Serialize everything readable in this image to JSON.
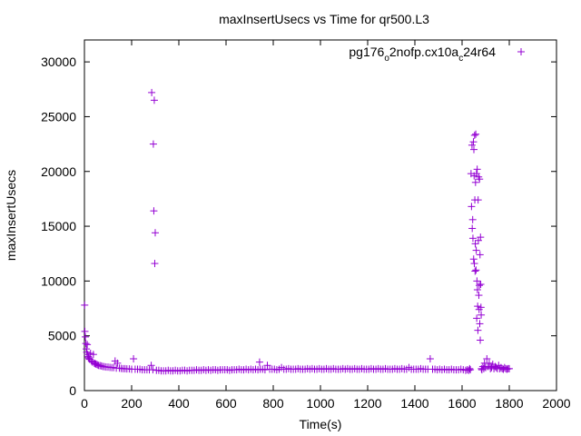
{
  "chart_data": {
    "type": "scatter",
    "title": "maxInsertUsecs vs Time for qr500.L3",
    "xlabel": "Time(s)",
    "ylabel": "maxInsertUsecs",
    "xlim": [
      0,
      2000
    ],
    "ylim": [
      0,
      32000
    ],
    "x_ticks": [
      0,
      200,
      400,
      600,
      800,
      1000,
      1200,
      1400,
      1600,
      1800,
      2000
    ],
    "y_ticks": [
      0,
      5000,
      10000,
      15000,
      20000,
      25000,
      30000
    ],
    "x_tick_labels": [
      "0",
      "200",
      "400",
      "600",
      "800",
      "1000",
      "1200",
      "1400",
      "1600",
      "1800",
      "2000"
    ],
    "y_tick_labels": [
      "0",
      "5000",
      "10000",
      "15000",
      "20000",
      "25000",
      "30000"
    ],
    "grid": false,
    "legend_position": "top-right",
    "marker": "plus",
    "colors": {
      "series": "#9400d3",
      "axes": "#000000"
    },
    "series": [
      {
        "name": "pg176_o2nofp.cx10a_c24r64",
        "legend_parts": {
          "a": "pg176",
          "b": "o",
          "c": "2nofp.cx10a",
          "d": "c",
          "e": "24r64"
        },
        "points": [
          [
            1,
            7800
          ],
          [
            2,
            5400
          ],
          [
            4,
            4900
          ],
          [
            6,
            4300
          ],
          [
            8,
            3800
          ],
          [
            10,
            3500
          ],
          [
            12,
            4200
          ],
          [
            14,
            3300
          ],
          [
            16,
            3100
          ],
          [
            18,
            3000
          ],
          [
            20,
            2900
          ],
          [
            23,
            2850
          ],
          [
            26,
            3400
          ],
          [
            30,
            2700
          ],
          [
            34,
            2600
          ],
          [
            38,
            3300
          ],
          [
            42,
            2500
          ],
          [
            46,
            2450
          ],
          [
            50,
            2400
          ],
          [
            55,
            2350
          ],
          [
            60,
            2300
          ],
          [
            66,
            2280
          ],
          [
            72,
            2250
          ],
          [
            78,
            2200
          ],
          [
            85,
            2180
          ],
          [
            92,
            2150
          ],
          [
            100,
            2150
          ],
          [
            108,
            2120
          ],
          [
            116,
            2100
          ],
          [
            124,
            2100
          ],
          [
            130,
            2700
          ],
          [
            135,
            2050
          ],
          [
            140,
            2500
          ],
          [
            148,
            2050
          ],
          [
            156,
            2020
          ],
          [
            164,
            2000
          ],
          [
            172,
            2000
          ],
          [
            180,
            1980
          ],
          [
            190,
            1980
          ],
          [
            200,
            1950
          ],
          [
            208,
            2900
          ],
          [
            215,
            1950
          ],
          [
            225,
            1950
          ],
          [
            235,
            1950
          ],
          [
            245,
            1900
          ],
          [
            255,
            1900
          ],
          [
            265,
            1900
          ],
          [
            275,
            1900
          ],
          [
            283,
            2300
          ],
          [
            285,
            27200
          ],
          [
            290,
            1900
          ],
          [
            292,
            22500
          ],
          [
            294,
            16400
          ],
          [
            296,
            26500
          ],
          [
            298,
            11600
          ],
          [
            300,
            14400
          ],
          [
            305,
            1850
          ],
          [
            315,
            1850
          ],
          [
            325,
            1800
          ],
          [
            335,
            1800
          ],
          [
            345,
            1800
          ],
          [
            355,
            1850
          ],
          [
            365,
            1800
          ],
          [
            375,
            1800
          ],
          [
            385,
            1850
          ],
          [
            395,
            1800
          ],
          [
            405,
            1800
          ],
          [
            415,
            1850
          ],
          [
            425,
            1850
          ],
          [
            435,
            1800
          ],
          [
            445,
            1850
          ],
          [
            455,
            1850
          ],
          [
            465,
            1850
          ],
          [
            475,
            1900
          ],
          [
            485,
            1850
          ],
          [
            495,
            1850
          ],
          [
            505,
            1900
          ],
          [
            515,
            1850
          ],
          [
            525,
            1900
          ],
          [
            535,
            1850
          ],
          [
            545,
            1900
          ],
          [
            555,
            1900
          ],
          [
            565,
            1850
          ],
          [
            575,
            1900
          ],
          [
            585,
            1900
          ],
          [
            595,
            1900
          ],
          [
            605,
            1900
          ],
          [
            615,
            1850
          ],
          [
            625,
            1900
          ],
          [
            635,
            1900
          ],
          [
            645,
            1900
          ],
          [
            655,
            1950
          ],
          [
            665,
            1900
          ],
          [
            675,
            1900
          ],
          [
            685,
            1950
          ],
          [
            695,
            1900
          ],
          [
            705,
            1950
          ],
          [
            715,
            1900
          ],
          [
            725,
            1950
          ],
          [
            735,
            1900
          ],
          [
            742,
            2600
          ],
          [
            745,
            1950
          ],
          [
            755,
            1950
          ],
          [
            765,
            1900
          ],
          [
            775,
            2300
          ],
          [
            785,
            1950
          ],
          [
            795,
            1950
          ],
          [
            805,
            1950
          ],
          [
            815,
            1900
          ],
          [
            825,
            1950
          ],
          [
            835,
            2100
          ],
          [
            845,
            1950
          ],
          [
            855,
            1950
          ],
          [
            865,
            2000
          ],
          [
            875,
            1950
          ],
          [
            885,
            1950
          ],
          [
            895,
            1950
          ],
          [
            905,
            2000
          ],
          [
            915,
            1950
          ],
          [
            925,
            1950
          ],
          [
            935,
            1950
          ],
          [
            945,
            2000
          ],
          [
            955,
            1950
          ],
          [
            965,
            2000
          ],
          [
            975,
            1950
          ],
          [
            985,
            1950
          ],
          [
            995,
            2000
          ],
          [
            1005,
            1950
          ],
          [
            1015,
            1950
          ],
          [
            1025,
            2000
          ],
          [
            1035,
            1950
          ],
          [
            1045,
            1950
          ],
          [
            1055,
            2000
          ],
          [
            1065,
            1950
          ],
          [
            1075,
            1950
          ],
          [
            1085,
            1950
          ],
          [
            1095,
            2000
          ],
          [
            1105,
            1950
          ],
          [
            1115,
            2000
          ],
          [
            1125,
            1950
          ],
          [
            1135,
            1950
          ],
          [
            1145,
            2000
          ],
          [
            1155,
            1950
          ],
          [
            1165,
            1950
          ],
          [
            1175,
            2000
          ],
          [
            1185,
            1950
          ],
          [
            1195,
            1950
          ],
          [
            1205,
            1950
          ],
          [
            1215,
            2000
          ],
          [
            1225,
            1950
          ],
          [
            1235,
            1950
          ],
          [
            1245,
            2000
          ],
          [
            1255,
            1950
          ],
          [
            1265,
            1950
          ],
          [
            1275,
            2000
          ],
          [
            1285,
            1950
          ],
          [
            1295,
            1950
          ],
          [
            1305,
            1950
          ],
          [
            1315,
            2000
          ],
          [
            1325,
            1950
          ],
          [
            1335,
            1950
          ],
          [
            1345,
            2000
          ],
          [
            1355,
            1950
          ],
          [
            1365,
            1950
          ],
          [
            1375,
            2100
          ],
          [
            1385,
            1950
          ],
          [
            1395,
            1950
          ],
          [
            1405,
            1950
          ],
          [
            1415,
            1950
          ],
          [
            1425,
            2000
          ],
          [
            1435,
            1950
          ],
          [
            1445,
            1950
          ],
          [
            1455,
            1950
          ],
          [
            1465,
            2900
          ],
          [
            1475,
            1950
          ],
          [
            1485,
            1950
          ],
          [
            1495,
            1900
          ],
          [
            1505,
            1950
          ],
          [
            1515,
            1900
          ],
          [
            1525,
            1950
          ],
          [
            1535,
            1900
          ],
          [
            1545,
            1900
          ],
          [
            1555,
            1950
          ],
          [
            1565,
            1900
          ],
          [
            1575,
            1900
          ],
          [
            1585,
            1900
          ],
          [
            1595,
            1950
          ],
          [
            1605,
            1900
          ],
          [
            1615,
            1850
          ],
          [
            1622,
            1900
          ],
          [
            1628,
            1850
          ],
          [
            1632,
            2000
          ],
          [
            1635,
            1900
          ],
          [
            1638,
            19800
          ],
          [
            1640,
            16800
          ],
          [
            1642,
            22400
          ],
          [
            1643,
            14800
          ],
          [
            1645,
            15600
          ],
          [
            1646,
            13900
          ],
          [
            1648,
            22700
          ],
          [
            1649,
            12000
          ],
          [
            1650,
            22000
          ],
          [
            1651,
            19600
          ],
          [
            1652,
            11600
          ],
          [
            1653,
            23300
          ],
          [
            1654,
            17400
          ],
          [
            1655,
            10900
          ],
          [
            1656,
            13400
          ],
          [
            1657,
            19000
          ],
          [
            1658,
            23400
          ],
          [
            1659,
            11000
          ],
          [
            1660,
            12800
          ],
          [
            1661,
            19800
          ],
          [
            1662,
            6600
          ],
          [
            1663,
            10000
          ],
          [
            1664,
            20200
          ],
          [
            1665,
            9200
          ],
          [
            1666,
            7700
          ],
          [
            1667,
            5500
          ],
          [
            1668,
            17400
          ],
          [
            1669,
            13700
          ],
          [
            1670,
            19500
          ],
          [
            1671,
            8700
          ],
          [
            1672,
            7400
          ],
          [
            1673,
            9600
          ],
          [
            1674,
            19300
          ],
          [
            1675,
            6100
          ],
          [
            1676,
            12400
          ],
          [
            1677,
            4600
          ],
          [
            1678,
            14000
          ],
          [
            1679,
            9700
          ],
          [
            1680,
            7600
          ],
          [
            1681,
            6900
          ],
          [
            1682,
            2000
          ],
          [
            1684,
            1900
          ],
          [
            1688,
            2200
          ],
          [
            1692,
            2000
          ],
          [
            1695,
            2500
          ],
          [
            1700,
            2100
          ],
          [
            1705,
            2900
          ],
          [
            1710,
            2200
          ],
          [
            1715,
            2500
          ],
          [
            1720,
            2000
          ],
          [
            1725,
            2100
          ],
          [
            1730,
            2400
          ],
          [
            1735,
            2000
          ],
          [
            1740,
            2200
          ],
          [
            1745,
            2100
          ],
          [
            1750,
            2000
          ],
          [
            1755,
            2300
          ],
          [
            1760,
            2000
          ],
          [
            1765,
            2100
          ],
          [
            1770,
            2000
          ],
          [
            1775,
            1950
          ],
          [
            1780,
            2100
          ],
          [
            1785,
            2000
          ],
          [
            1790,
            1950
          ],
          [
            1795,
            2000
          ],
          [
            1800,
            2000
          ]
        ]
      }
    ]
  }
}
